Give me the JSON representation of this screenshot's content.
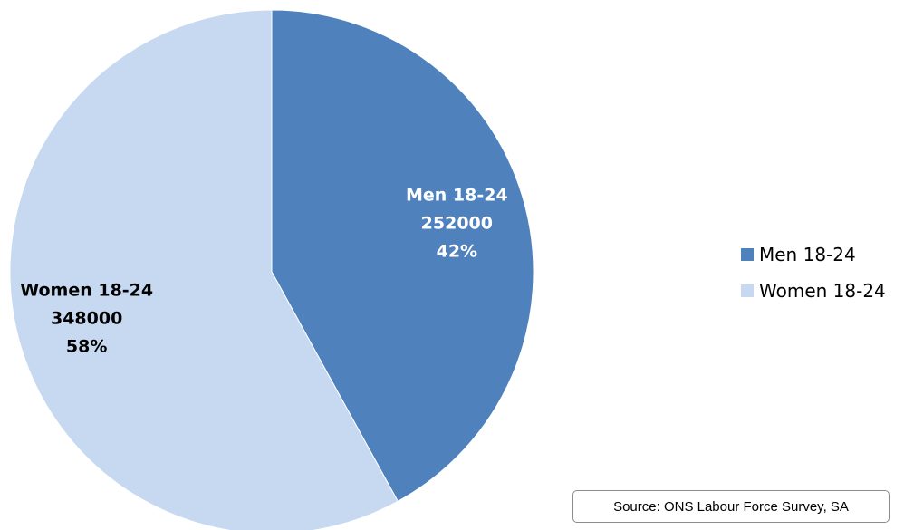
{
  "chart_data": {
    "type": "pie",
    "title": "",
    "slices": [
      {
        "name": "Men 18-24",
        "value": 252000,
        "percent": "42%",
        "color": "#4f81bd",
        "label_color": "#ffffff"
      },
      {
        "name": "Women 18-24",
        "value": 348000,
        "percent": "58%",
        "color": "#c6d9f1",
        "label_color": "#000000"
      }
    ],
    "start_angle_deg": 0,
    "direction": "clockwise",
    "legend": {
      "placement": "right",
      "entries": [
        "Men 18-24",
        "Women 18-24"
      ]
    }
  },
  "source_note": "Source: ONS Labour Force Survey, SA"
}
